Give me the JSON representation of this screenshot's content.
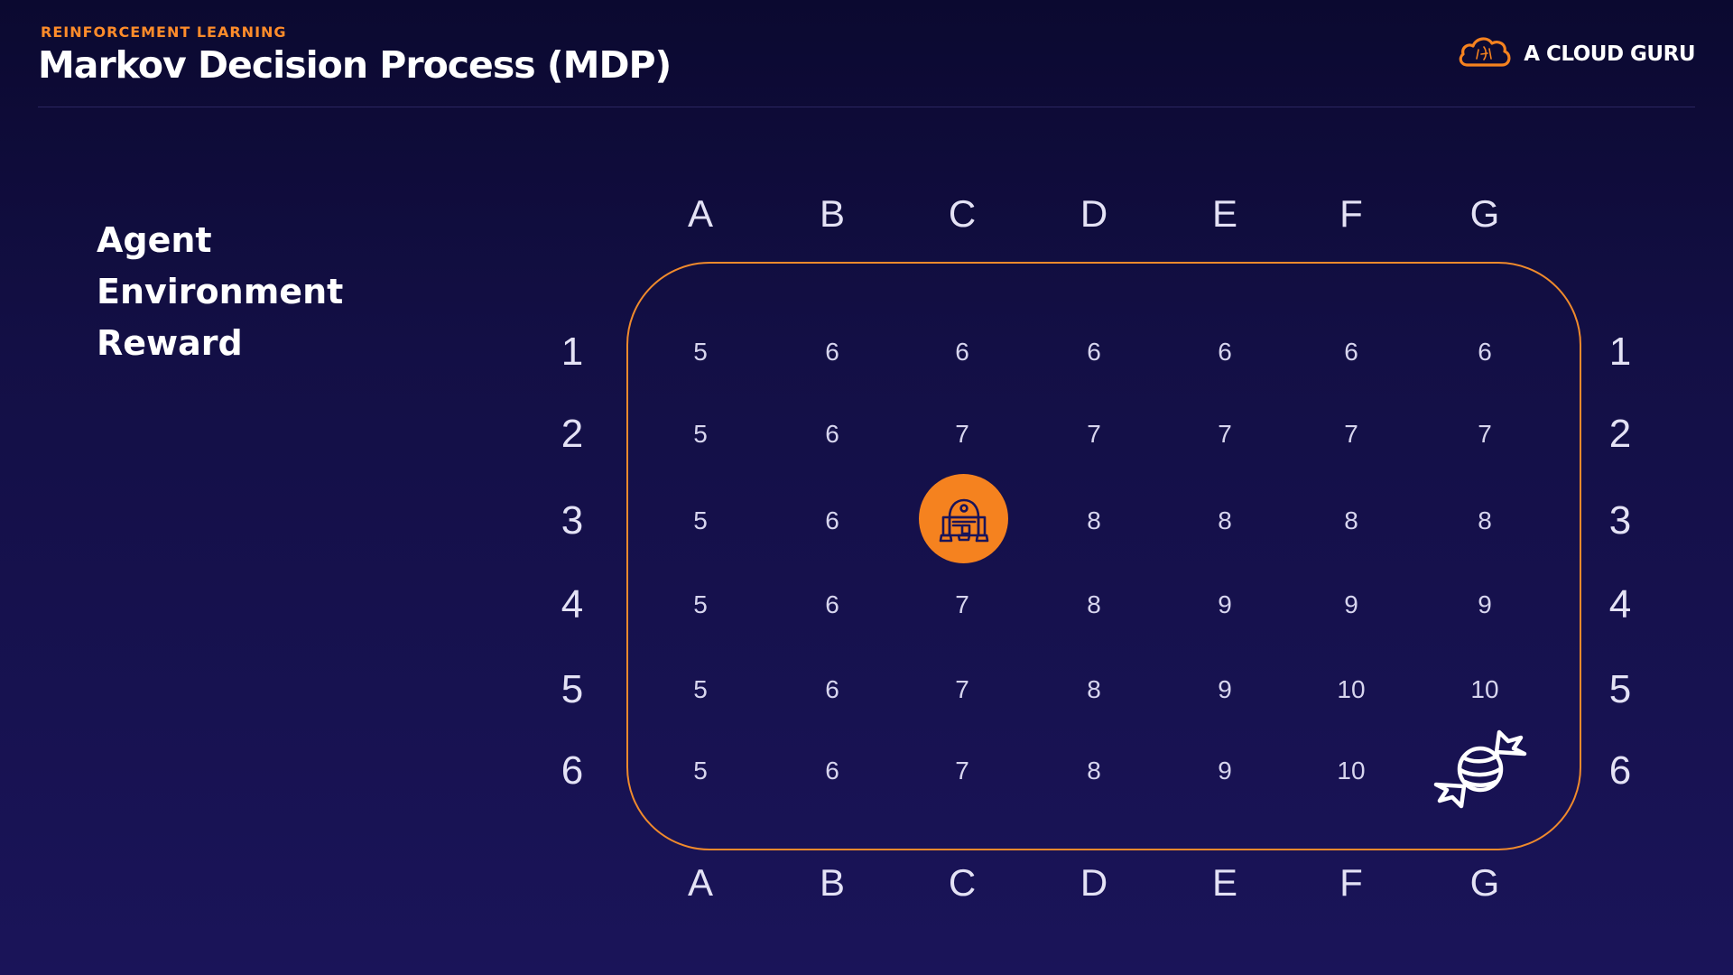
{
  "header": {
    "eyebrow": "REINFORCEMENT LEARNING",
    "title": "Markov Decision Process (MDP)",
    "brand": "A CLOUD GURU"
  },
  "concepts": [
    "Agent",
    "Environment",
    "Reward"
  ],
  "grid": {
    "columns": [
      "A",
      "B",
      "C",
      "D",
      "E",
      "F",
      "G"
    ],
    "rows": [
      "1",
      "2",
      "3",
      "4",
      "5",
      "6"
    ],
    "values": [
      [
        "5",
        "6",
        "6",
        "6",
        "6",
        "6",
        "6"
      ],
      [
        "5",
        "6",
        "7",
        "7",
        "7",
        "7",
        "7"
      ],
      [
        "5",
        "6",
        "",
        "8",
        "8",
        "8",
        "8"
      ],
      [
        "5",
        "6",
        "7",
        "8",
        "9",
        "9",
        "9"
      ],
      [
        "5",
        "6",
        "7",
        "8",
        "9",
        "10",
        "10"
      ],
      [
        "5",
        "6",
        "7",
        "8",
        "9",
        "10",
        ""
      ]
    ],
    "agent": {
      "cell": "C3",
      "icon": "robot-icon"
    },
    "reward": {
      "cell": "G6",
      "icon": "candy-icon"
    }
  },
  "colors": {
    "accent": "#f5821f",
    "background": "#130f45",
    "text": "#ffffff"
  }
}
